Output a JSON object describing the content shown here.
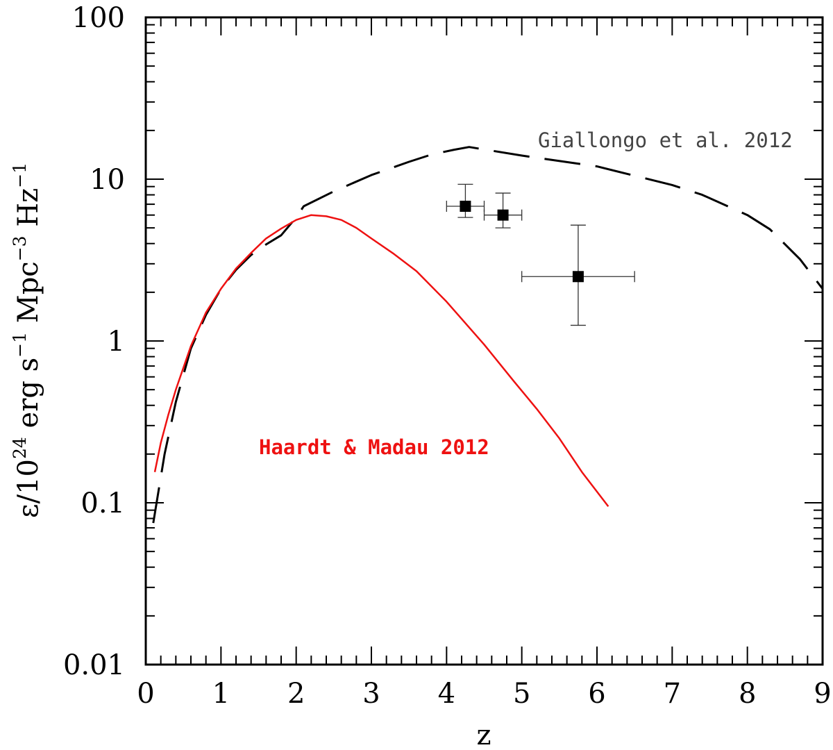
{
  "chart_data": {
    "type": "line",
    "title": "",
    "xlabel": "z",
    "ylabel": {
      "prefix": "ε/10",
      "exp1": "24",
      "mid1": " erg s",
      "exp2": "−1",
      "mid2": " Mpc",
      "exp3": "−3",
      "mid3": " Hz",
      "exp4": "−1"
    },
    "xlim": [
      0,
      9
    ],
    "ylim": [
      0.01,
      100
    ],
    "yscale": "log",
    "grid": false,
    "x_ticks": [
      "0",
      "1",
      "2",
      "3",
      "4",
      "5",
      "6",
      "7",
      "8",
      "9"
    ],
    "y_ticks": [
      {
        "value": 0.01,
        "label": "0.01"
      },
      {
        "value": 0.1,
        "label": "0.1"
      },
      {
        "value": 1,
        "label": "1"
      },
      {
        "value": 10,
        "label": "10"
      },
      {
        "value": 100,
        "label": "100"
      }
    ],
    "series": [
      {
        "name": "Giallongo et al. 2012",
        "style": "dashed",
        "color": "#000000",
        "points": [
          [
            0.1,
            0.075
          ],
          [
            0.25,
            0.2
          ],
          [
            0.4,
            0.42
          ],
          [
            0.6,
            0.9
          ],
          [
            0.8,
            1.45
          ],
          [
            1.0,
            2.1
          ],
          [
            1.2,
            2.75
          ],
          [
            1.4,
            3.4
          ],
          [
            1.6,
            3.95
          ],
          [
            1.8,
            4.5
          ],
          [
            2.0,
            5.8
          ],
          [
            2.1,
            6.8
          ],
          [
            2.5,
            8.4
          ],
          [
            3.0,
            10.6
          ],
          [
            3.5,
            12.8
          ],
          [
            3.8,
            14.2
          ],
          [
            4.1,
            15.2
          ],
          [
            4.3,
            15.8
          ],
          [
            5.0,
            14.0
          ],
          [
            6.0,
            12.0
          ],
          [
            7.0,
            9.2
          ],
          [
            7.4,
            8.0
          ],
          [
            8.0,
            6.0
          ],
          [
            8.3,
            4.9
          ],
          [
            8.7,
            3.2
          ],
          [
            9.0,
            2.1
          ]
        ]
      },
      {
        "name": "Haardt & Madau 2012",
        "style": "solid",
        "color": "#ee1111",
        "points": [
          [
            0.12,
            0.155
          ],
          [
            0.2,
            0.235
          ],
          [
            0.3,
            0.35
          ],
          [
            0.4,
            0.5
          ],
          [
            0.6,
            0.93
          ],
          [
            0.8,
            1.5
          ],
          [
            1.0,
            2.1
          ],
          [
            1.2,
            2.8
          ],
          [
            1.4,
            3.5
          ],
          [
            1.6,
            4.3
          ],
          [
            1.8,
            4.95
          ],
          [
            2.0,
            5.6
          ],
          [
            2.2,
            6.0
          ],
          [
            2.4,
            5.9
          ],
          [
            2.6,
            5.6
          ],
          [
            2.8,
            5.0
          ],
          [
            3.0,
            4.3
          ],
          [
            3.3,
            3.45
          ],
          [
            3.6,
            2.7
          ],
          [
            4.0,
            1.75
          ],
          [
            4.5,
            0.95
          ],
          [
            4.9,
            0.56
          ],
          [
            5.2,
            0.38
          ],
          [
            5.5,
            0.25
          ],
          [
            5.8,
            0.155
          ],
          [
            6.15,
            0.095
          ]
        ]
      }
    ],
    "data_points": [
      {
        "x": 4.25,
        "y": 6.8,
        "xerr": [
          4.0,
          4.5
        ],
        "yerr": [
          5.8,
          9.3
        ]
      },
      {
        "x": 4.75,
        "y": 6.0,
        "xerr": [
          4.5,
          5.0
        ],
        "yerr": [
          5.0,
          8.2
        ]
      },
      {
        "x": 5.75,
        "y": 2.5,
        "xerr": [
          5.0,
          6.5
        ],
        "yerr": [
          1.25,
          5.2
        ]
      }
    ],
    "annotations": [
      {
        "text": "Giallongo et al. 2012",
        "color": "#444444"
      },
      {
        "text": "Haardt & Madau 2012",
        "color": "#ee1111"
      }
    ]
  }
}
